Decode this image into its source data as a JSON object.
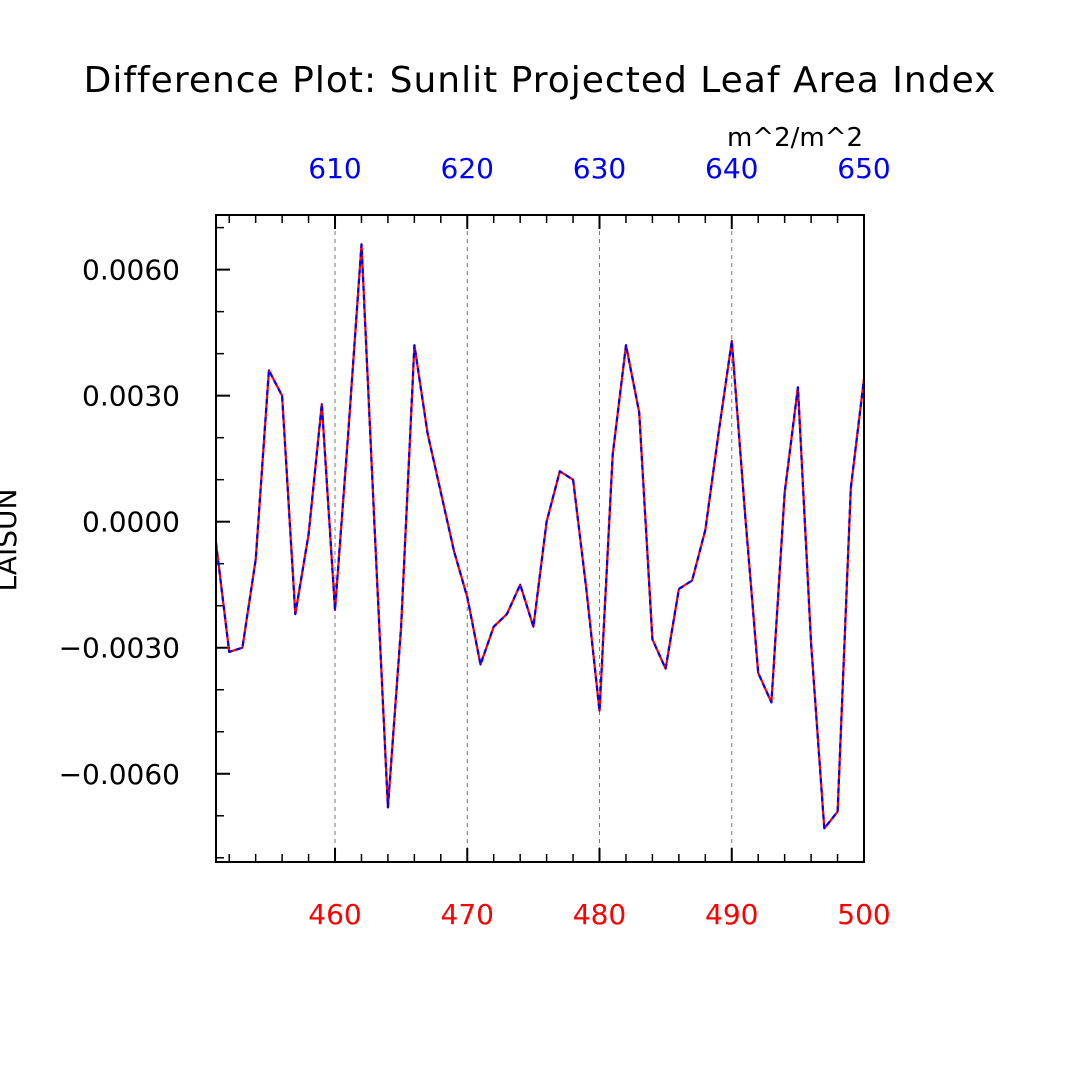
{
  "chart_data": {
    "type": "line",
    "title": "Difference Plot: Sunlit Projected Leaf Area Index",
    "units": "m^2/m^2",
    "ylabel": "LAISUN",
    "xlabel": "",
    "xlim": [
      451,
      500
    ],
    "ylim": [
      -0.0081,
      0.0073
    ],
    "x_ticks_bottom": [
      "460",
      "470",
      "480",
      "490",
      "500"
    ],
    "x_ticks_bottom_values": [
      460,
      470,
      480,
      490,
      500
    ],
    "x_ticks_top": [
      "610",
      "620",
      "630",
      "640",
      "650"
    ],
    "y_ticks": [
      "0.0060",
      "0.0030",
      "0.0000",
      "−0.0030",
      "−0.0060"
    ],
    "y_tick_values": [
      0.006,
      0.003,
      0.0,
      -0.003,
      -0.006
    ],
    "grid": "vertical dashed at major x ticks",
    "series": [
      {
        "color_solid": "#ff0000",
        "color_dashed": "#0000ff",
        "x": [
          451,
          452,
          453,
          454,
          455,
          456,
          457,
          458,
          459,
          460,
          461,
          462,
          463,
          464,
          465,
          466,
          467,
          468,
          469,
          470,
          471,
          472,
          473,
          474,
          475,
          476,
          477,
          478,
          479,
          480,
          481,
          482,
          483,
          484,
          485,
          486,
          487,
          488,
          489,
          490,
          491,
          492,
          493,
          494,
          495,
          496,
          497,
          498,
          499,
          500
        ],
        "values": [
          -0.0005,
          -0.0031,
          -0.003,
          -0.0009,
          0.0036,
          0.003,
          -0.0022,
          -0.0003,
          0.0028,
          -0.0021,
          0.0021,
          0.0066,
          -0.0002,
          -0.0068,
          -0.0025,
          0.0042,
          0.0021,
          0.0007,
          -0.0007,
          -0.0018,
          -0.0034,
          -0.0025,
          -0.0022,
          -0.0015,
          -0.0025,
          0.0,
          0.0012,
          0.001,
          -0.0016,
          -0.0045,
          0.0016,
          0.0042,
          0.0026,
          -0.0028,
          -0.0035,
          -0.0016,
          -0.0014,
          -0.0002,
          0.0021,
          0.0043,
          0.0002,
          -0.0036,
          -0.0043,
          0.0007,
          0.0032,
          -0.0029,
          -0.0073,
          -0.0069,
          0.0008,
          0.0034
        ]
      }
    ]
  }
}
